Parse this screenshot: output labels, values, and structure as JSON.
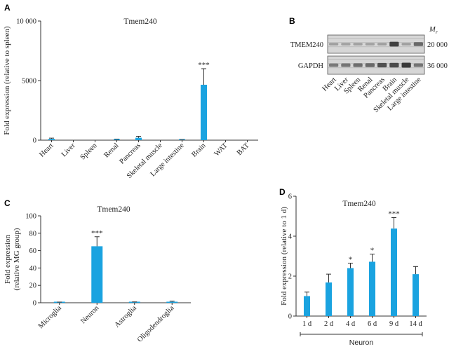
{
  "colors": {
    "bar": "#1aa3e0",
    "axis": "#333333",
    "error": "#333333",
    "blot_bg": "#d6d6d6",
    "band": "#3a3a3a"
  },
  "chart_data": [
    {
      "panel": "A",
      "type": "bar",
      "title": "Tmem240",
      "ylabel": "Fold expression (relative to spleen)",
      "xlabel": "",
      "categories": [
        "Heart",
        "Liver",
        "Spleen",
        "Renal",
        "Pancreas",
        "Skeletal muscle",
        "Large intestine",
        "Brain",
        "WAT",
        "BAT"
      ],
      "values": [
        110,
        0,
        0,
        60,
        200,
        0,
        40,
        4650,
        0,
        0
      ],
      "errors": [
        60,
        0,
        0,
        30,
        120,
        0,
        20,
        1350,
        0,
        0
      ],
      "significance": [
        "",
        "",
        "",
        "",
        "",
        "",
        "",
        "***",
        "",
        ""
      ],
      "ylim": [
        0,
        10000
      ],
      "yticks": [
        0,
        5000,
        10000
      ],
      "ytick_labels": [
        "0",
        "5000",
        "10 000"
      ],
      "grid": false
    },
    {
      "panel": "C",
      "type": "bar",
      "title": "Tmem240",
      "ylabel": "Fold expression (relative MG group)",
      "ylabel_lines": [
        "Fold expression",
        "(relative MG group)"
      ],
      "xlabel": "",
      "categories": [
        "Microglia",
        "Neuron",
        "Astroglia",
        "Oligodendroglia"
      ],
      "values": [
        0.5,
        65,
        0.6,
        1.2
      ],
      "errors": [
        0.3,
        11,
        0.4,
        0.6
      ],
      "significance": [
        "",
        "***",
        "",
        ""
      ],
      "ylim": [
        0,
        100
      ],
      "yticks": [
        0,
        20,
        40,
        60,
        80,
        100
      ],
      "grid": false
    },
    {
      "panel": "D",
      "type": "bar",
      "title": "Tmem240",
      "ylabel": "Fold expression (relative to 1 d)",
      "xlabel": "Neuron",
      "categories": [
        "1 d",
        "2 d",
        "4 d",
        "6 d",
        "9 d",
        "14 d"
      ],
      "values": [
        1.0,
        1.68,
        2.4,
        2.72,
        4.38,
        2.1
      ],
      "errors": [
        0.2,
        0.42,
        0.25,
        0.38,
        0.55,
        0.38
      ],
      "significance": [
        "",
        "",
        "*",
        "*",
        "***",
        ""
      ],
      "ylim": [
        0,
        6
      ],
      "yticks": [
        0,
        2,
        4,
        6
      ],
      "grid": false
    }
  ],
  "blot": {
    "panel": "B",
    "mr_label": "M",
    "mr_sub": "r",
    "rows": [
      {
        "label": "TMEM240",
        "marker": "20 000",
        "intensities": [
          0.15,
          0.12,
          0.12,
          0.12,
          0.15,
          0.95,
          0.15,
          0.6
        ]
      },
      {
        "label": "GAPDH",
        "marker": "36 000",
        "intensities": [
          0.45,
          0.5,
          0.55,
          0.6,
          0.8,
          0.85,
          1.0,
          0.5
        ]
      }
    ],
    "lanes": [
      "Heart",
      "Liver",
      "Spleen",
      "Renal",
      "Pancreas",
      "Brain",
      "Skeletal muscle",
      "Large intestine"
    ]
  }
}
